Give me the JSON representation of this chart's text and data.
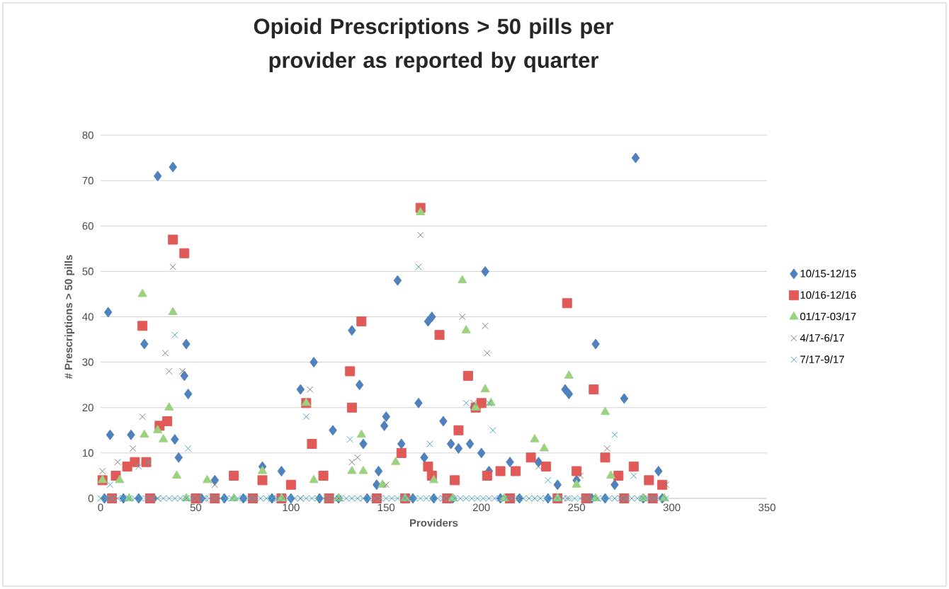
{
  "chart_data": {
    "type": "scatter",
    "title": "Opioid Prescriptions > 50 pills per provider as reported by quarter",
    "xlabel": "Providers",
    "ylabel": "# Prescriptions > 50 pills",
    "xlim": [
      0,
      350
    ],
    "xticks": [
      0,
      50,
      100,
      150,
      200,
      250,
      300,
      350
    ],
    "ylim": [
      0,
      80
    ],
    "yticks": [
      0,
      10,
      20,
      30,
      40,
      50,
      60,
      70,
      80
    ],
    "grid": "y",
    "legend": "right",
    "series": [
      {
        "name": "10/15-12/15",
        "color": "#4f81bd",
        "marker": "diamond",
        "x": [
          4,
          5,
          16,
          23,
          30,
          38,
          44,
          45,
          46,
          39,
          41,
          105,
          112,
          122,
          132,
          136,
          138,
          146,
          149,
          150,
          156,
          158,
          167,
          170,
          172,
          174,
          180,
          184,
          188,
          194,
          196,
          200,
          202,
          204,
          215,
          230,
          244,
          246,
          260,
          275,
          281,
          293,
          95,
          85,
          60,
          145,
          240,
          270,
          250,
          2,
          12,
          20,
          28,
          53,
          65,
          75,
          90,
          100,
          115,
          125,
          140,
          164,
          175,
          185,
          210,
          220,
          235,
          258,
          265,
          285,
          295
        ],
        "values": [
          41,
          14,
          14,
          34,
          71,
          73,
          27,
          34,
          23,
          13,
          9,
          24,
          30,
          15,
          37,
          25,
          12,
          6,
          16,
          18,
          48,
          12,
          21,
          9,
          39,
          40,
          17,
          12,
          11,
          12,
          20,
          10,
          50,
          6,
          8,
          8,
          24,
          23,
          34,
          22,
          75,
          6,
          6,
          7,
          4,
          3,
          3,
          3,
          4,
          0,
          0,
          0,
          0,
          0,
          0,
          0,
          0,
          0,
          0,
          0,
          0,
          0,
          0,
          0,
          0,
          0,
          0,
          0,
          0,
          0,
          0
        ]
      },
      {
        "name": "10/16-12/16",
        "color": "#e05a57",
        "marker": "square",
        "x": [
          1,
          8,
          14,
          18,
          22,
          24,
          31,
          35,
          38,
          44,
          70,
          85,
          100,
          108,
          111,
          117,
          131,
          132,
          137,
          158,
          168,
          172,
          174,
          178,
          186,
          188,
          193,
          197,
          200,
          203,
          210,
          218,
          226,
          234,
          245,
          250,
          259,
          265,
          272,
          280,
          288,
          295,
          6,
          26,
          50,
          60,
          80,
          95,
          120,
          145,
          160,
          182,
          215,
          240,
          255,
          275,
          290
        ],
        "values": [
          4,
          5,
          7,
          8,
          38,
          8,
          16,
          17,
          57,
          54,
          5,
          4,
          3,
          21,
          12,
          5,
          28,
          20,
          39,
          10,
          64,
          7,
          5,
          36,
          4,
          15,
          27,
          20,
          21,
          5,
          6,
          6,
          9,
          7,
          43,
          6,
          24,
          9,
          5,
          7,
          4,
          3,
          0,
          0,
          0,
          0,
          0,
          0,
          0,
          0,
          0,
          0,
          0,
          0,
          0,
          0,
          0
        ]
      },
      {
        "name": "01/17-03/17",
        "color": "#9bd27f",
        "marker": "triangle",
        "x": [
          1,
          10,
          22,
          23,
          30,
          33,
          36,
          38,
          40,
          56,
          85,
          108,
          112,
          132,
          137,
          138,
          148,
          155,
          168,
          175,
          190,
          192,
          197,
          202,
          205,
          228,
          233,
          246,
          265,
          268,
          250,
          15,
          45,
          70,
          95,
          125,
          160,
          185,
          212,
          240,
          260,
          285,
          296
        ],
        "values": [
          4,
          4,
          45,
          14,
          15,
          13,
          20,
          41,
          5,
          4,
          6,
          21,
          4,
          6,
          14,
          6,
          3,
          8,
          63,
          4,
          48,
          37,
          20,
          24,
          21,
          13,
          11,
          27,
          19,
          5,
          3,
          0,
          0,
          0,
          0,
          0,
          0,
          0,
          0,
          0,
          0,
          0,
          0
        ]
      },
      {
        "name": "4/17-6/17",
        "color": "#7f7f7f",
        "marker": "cross",
        "x": [
          1,
          9,
          17,
          22,
          34,
          36,
          38,
          43,
          110,
          132,
          135,
          168,
          190,
          196,
          202,
          203,
          230,
          252,
          266,
          297,
          60,
          150,
          5,
          30,
          55,
          80,
          105,
          125,
          160,
          180,
          220,
          245,
          275,
          290
        ],
        "values": [
          6,
          8,
          11,
          18,
          32,
          28,
          51,
          28,
          24,
          8,
          9,
          58,
          40,
          21,
          38,
          32,
          7,
          5,
          11,
          3,
          3,
          3,
          0,
          0,
          0,
          0,
          0,
          0,
          0,
          0,
          0,
          0,
          0,
          0
        ]
      },
      {
        "name": "7/17-9/17",
        "color": "#4bacc6",
        "marker": "cross",
        "x": [
          5,
          20,
          25,
          39,
          46,
          108,
          131,
          173,
          167,
          192,
          204,
          206,
          270,
          280,
          235,
          0,
          3,
          6,
          9,
          12,
          15,
          18,
          21,
          24,
          27,
          30,
          33,
          36,
          39,
          42,
          45,
          48,
          51,
          54,
          57,
          60,
          63,
          66,
          69,
          72,
          75,
          78,
          81,
          84,
          87,
          90,
          93,
          96,
          99,
          102,
          105,
          108,
          111,
          114,
          117,
          120,
          123,
          126,
          129,
          132,
          135,
          138,
          141,
          144,
          147,
          150,
          153,
          156,
          159,
          162,
          165,
          168,
          171,
          174,
          177,
          180,
          183,
          186,
          189,
          192,
          195,
          198,
          201,
          204,
          207,
          210,
          213,
          216,
          219,
          222,
          225,
          228,
          231,
          234,
          237,
          240,
          243,
          246,
          249,
          252,
          255,
          258,
          261,
          264,
          267,
          270,
          273,
          276,
          279,
          282,
          285,
          288,
          291,
          294,
          297
        ],
        "values": [
          3,
          7,
          8,
          36,
          11,
          18,
          13,
          12,
          51,
          21,
          21,
          15,
          14,
          5,
          4,
          0,
          0,
          0,
          0,
          0,
          0,
          0,
          0,
          0,
          0,
          0,
          0,
          0,
          0,
          0,
          0,
          0,
          0,
          0,
          0,
          0,
          0,
          0,
          0,
          0,
          0,
          0,
          0,
          0,
          0,
          0,
          0,
          0,
          0,
          0,
          0,
          0,
          0,
          0,
          0,
          0,
          0,
          0,
          0,
          0,
          0,
          0,
          0,
          0,
          0,
          0,
          0,
          0,
          0,
          0,
          0,
          0,
          0,
          0,
          0,
          0,
          0,
          0,
          0,
          0,
          0,
          0,
          0,
          0,
          0,
          0,
          0,
          0,
          0,
          0,
          0,
          0,
          0,
          0,
          0,
          0,
          0,
          0,
          0,
          0,
          0,
          0,
          0,
          0,
          0,
          0,
          0,
          0,
          0,
          0,
          0,
          0,
          0,
          0,
          0
        ]
      }
    ]
  }
}
